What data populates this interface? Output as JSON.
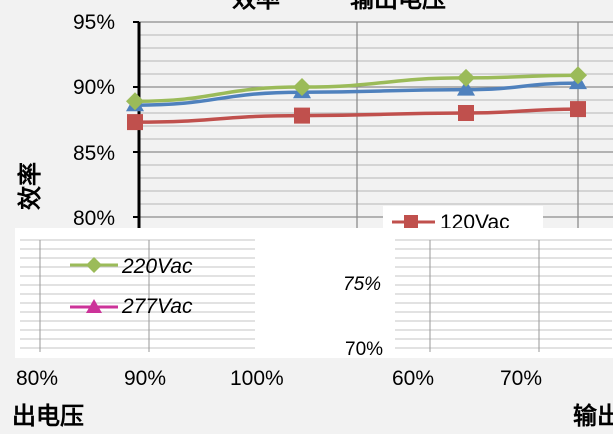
{
  "chart_data": {
    "type": "line",
    "title": "效率 — 输出电压",
    "ylabel": "效率",
    "xlabel": "出电压",
    "xlabel_right": "输出",
    "y_ticks": [
      "95%",
      "90%",
      "85%",
      "80%"
    ],
    "ylim": [
      80,
      95
    ],
    "bottom_ticks": [
      "80%",
      "90%",
      "100%",
      "60%",
      "70%"
    ],
    "inset_ticks": [
      "75%",
      "70%"
    ],
    "x_positions": [
      1,
      2,
      3,
      4
    ],
    "grid": true,
    "legend_position": "bottom",
    "series": [
      {
        "name": "120Vac",
        "color": "#c0504d",
        "marker": "square",
        "values": [
          87.3,
          87.8,
          88.0,
          88.3
        ]
      },
      {
        "name": "220Vac",
        "color": "#9bbb59",
        "marker": "diamond",
        "values": [
          88.9,
          90.0,
          90.7,
          90.9
        ]
      },
      {
        "name": "277Vac",
        "color": "#4f81bd",
        "marker": "triangle",
        "values": [
          88.6,
          89.6,
          89.8,
          90.3
        ]
      }
    ]
  }
}
